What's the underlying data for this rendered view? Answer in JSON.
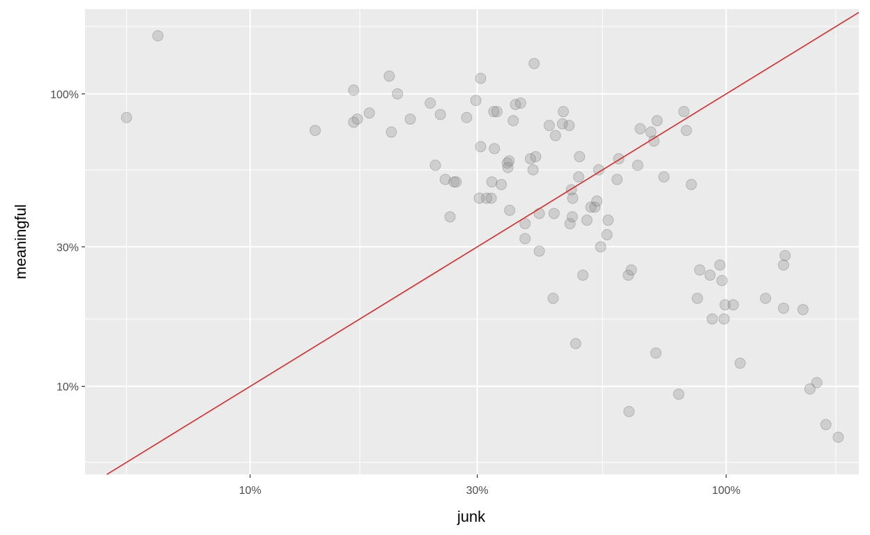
{
  "chart_data": {
    "type": "scatter",
    "xlabel": "junk",
    "ylabel": "meaningful",
    "x_scale": "log10",
    "y_scale": "log10",
    "xlim": [
      0.045,
      1.9
    ],
    "ylim": [
      0.05,
      1.95
    ],
    "x_ticks": [
      {
        "value": 0.1,
        "label": "10%"
      },
      {
        "value": 0.3,
        "label": "30%"
      },
      {
        "value": 1.0,
        "label": "100%"
      }
    ],
    "y_ticks": [
      {
        "value": 0.1,
        "label": "10%"
      },
      {
        "value": 0.3,
        "label": "30%"
      },
      {
        "value": 1.0,
        "label": "100%"
      }
    ],
    "x_minor": [
      0.055,
      0.17,
      0.55,
      1.7
    ],
    "y_minor": [
      0.055,
      0.17,
      0.55,
      1.7
    ],
    "grid": true,
    "reference_line": {
      "slope": 1,
      "intercept": 0,
      "color": "#e41a1c"
    },
    "point_color": "#8c8c8c",
    "point_opacity": 0.3,
    "points": [
      [
        0.055,
        0.83
      ],
      [
        0.064,
        1.58
      ],
      [
        0.137,
        0.75
      ],
      [
        0.165,
        1.03
      ],
      [
        0.165,
        0.8
      ],
      [
        0.168,
        0.82
      ],
      [
        0.178,
        0.86
      ],
      [
        0.196,
        1.15
      ],
      [
        0.198,
        0.74
      ],
      [
        0.204,
        1.0
      ],
      [
        0.217,
        0.82
      ],
      [
        0.239,
        0.93
      ],
      [
        0.245,
        0.57
      ],
      [
        0.251,
        0.85
      ],
      [
        0.257,
        0.51
      ],
      [
        0.263,
        0.38
      ],
      [
        0.268,
        0.5
      ],
      [
        0.271,
        0.5
      ],
      [
        0.285,
        0.83
      ],
      [
        0.298,
        0.95
      ],
      [
        0.305,
        1.13
      ],
      [
        0.305,
        0.66
      ],
      [
        0.303,
        0.44
      ],
      [
        0.314,
        0.44
      ],
      [
        0.321,
        0.44
      ],
      [
        0.322,
        0.5
      ],
      [
        0.325,
        0.87
      ],
      [
        0.326,
        0.65
      ],
      [
        0.33,
        0.87
      ],
      [
        0.337,
        0.49
      ],
      [
        0.347,
        0.58
      ],
      [
        0.35,
        0.59
      ],
      [
        0.348,
        0.56
      ],
      [
        0.351,
        0.4
      ],
      [
        0.357,
        0.81
      ],
      [
        0.361,
        0.92
      ],
      [
        0.37,
        0.93
      ],
      [
        0.378,
        0.36
      ],
      [
        0.378,
        0.32
      ],
      [
        0.388,
        0.6
      ],
      [
        0.395,
        1.27
      ],
      [
        0.393,
        0.55
      ],
      [
        0.398,
        0.61
      ],
      [
        0.405,
        0.39
      ],
      [
        0.405,
        0.29
      ],
      [
        0.425,
        0.78
      ],
      [
        0.433,
        0.2
      ],
      [
        0.435,
        0.39
      ],
      [
        0.438,
        0.72
      ],
      [
        0.453,
        0.79
      ],
      [
        0.455,
        0.87
      ],
      [
        0.468,
        0.78
      ],
      [
        0.47,
        0.36
      ],
      [
        0.473,
        0.47
      ],
      [
        0.475,
        0.38
      ],
      [
        0.476,
        0.44
      ],
      [
        0.483,
        0.14
      ],
      [
        0.49,
        0.52
      ],
      [
        0.492,
        0.61
      ],
      [
        0.5,
        0.24
      ],
      [
        0.51,
        0.37
      ],
      [
        0.52,
        0.41
      ],
      [
        0.53,
        0.41
      ],
      [
        0.535,
        0.43
      ],
      [
        0.54,
        0.55
      ],
      [
        0.545,
        0.3
      ],
      [
        0.562,
        0.33
      ],
      [
        0.565,
        0.37
      ],
      [
        0.59,
        0.51
      ],
      [
        0.595,
        0.6
      ],
      [
        0.623,
        0.24
      ],
      [
        0.625,
        0.082
      ],
      [
        0.632,
        0.25
      ],
      [
        0.652,
        0.57
      ],
      [
        0.66,
        0.76
      ],
      [
        0.695,
        0.74
      ],
      [
        0.705,
        0.69
      ],
      [
        0.712,
        0.13
      ],
      [
        0.716,
        0.81
      ],
      [
        0.74,
        0.52
      ],
      [
        0.795,
        0.094
      ],
      [
        0.815,
        0.87
      ],
      [
        0.825,
        0.75
      ],
      [
        0.845,
        0.49
      ],
      [
        0.87,
        0.2
      ],
      [
        0.88,
        0.25
      ],
      [
        0.925,
        0.24
      ],
      [
        0.935,
        0.17
      ],
      [
        0.97,
        0.26
      ],
      [
        0.98,
        0.23
      ],
      [
        0.99,
        0.17
      ],
      [
        0.995,
        0.19
      ],
      [
        1.035,
        0.19
      ],
      [
        1.07,
        0.12
      ],
      [
        1.21,
        0.2
      ],
      [
        1.32,
        0.26
      ],
      [
        1.33,
        0.28
      ],
      [
        1.32,
        0.185
      ],
      [
        1.45,
        0.183
      ],
      [
        1.5,
        0.098
      ],
      [
        1.55,
        0.103
      ],
      [
        1.62,
        0.074
      ],
      [
        1.72,
        0.067
      ]
    ]
  }
}
